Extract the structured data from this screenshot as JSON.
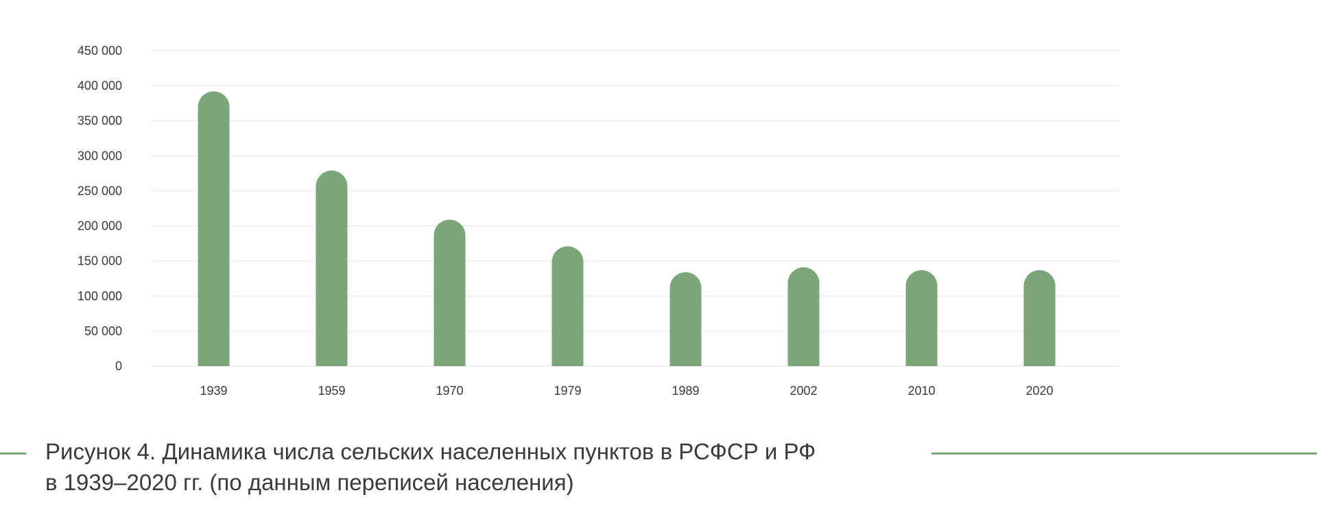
{
  "chart_data": {
    "type": "bar",
    "categories": [
      "1939",
      "1959",
      "1970",
      "1979",
      "1989",
      "2002",
      "2010",
      "2020"
    ],
    "values": [
      392000,
      279000,
      209000,
      171000,
      134000,
      141000,
      137000,
      137000
    ],
    "ylim": [
      0,
      450000
    ],
    "yticks": [
      0,
      50000,
      100000,
      150000,
      200000,
      250000,
      300000,
      350000,
      400000,
      450000
    ],
    "ytick_labels": [
      "0",
      "50 000",
      "100 000",
      "150 000",
      "200 000",
      "250 000",
      "300 000",
      "350 000",
      "400 000",
      "450 000"
    ],
    "grid": true,
    "legend": "none",
    "bar_color": "#7aa67a",
    "grid_color": "#e8e8e8"
  },
  "caption": {
    "line1": "Рисунок 4. Динамика числа сельских населенных пунктов в РСФСР и РФ",
    "line2": "в 1939–2020 гг. (по данным переписей населения)",
    "accent_color": "#7aa67a"
  }
}
